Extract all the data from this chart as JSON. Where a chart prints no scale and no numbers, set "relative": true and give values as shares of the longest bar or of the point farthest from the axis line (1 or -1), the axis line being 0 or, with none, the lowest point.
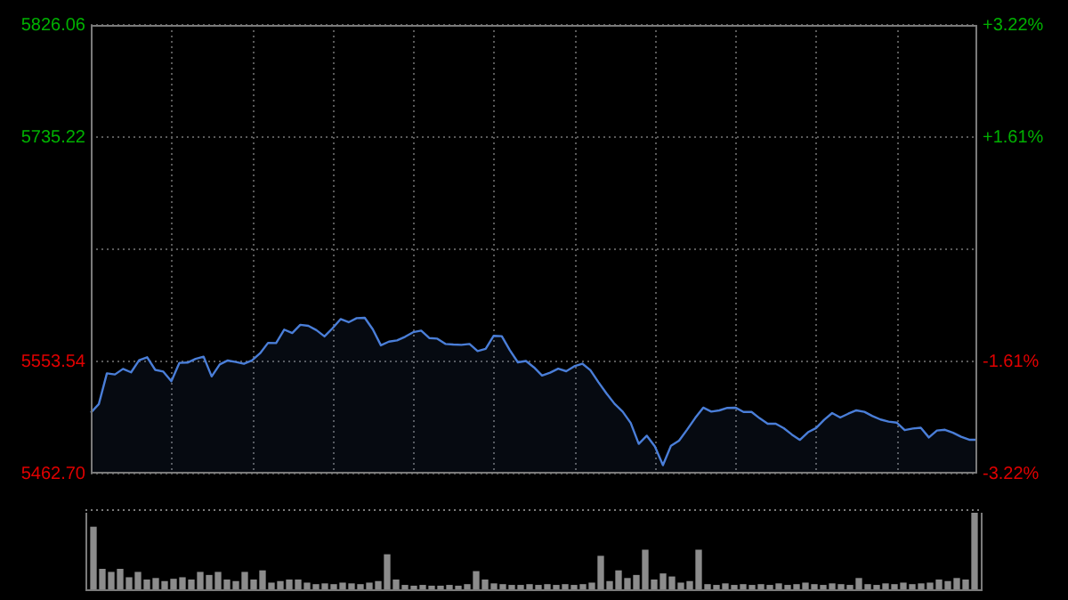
{
  "chart_data": [
    {
      "type": "area",
      "grid": true,
      "tick_labels": "y",
      "categories": [
        null,
        null,
        null,
        null,
        null,
        null,
        null,
        null,
        null,
        null,
        null,
        null,
        null,
        null,
        null,
        null,
        null,
        null,
        null,
        null,
        null,
        null,
        null,
        null,
        null,
        null,
        null,
        null,
        null,
        null,
        null,
        null,
        null,
        null,
        null,
        null,
        null,
        null,
        null,
        null,
        null,
        null,
        null,
        null,
        null,
        null,
        null,
        null,
        null,
        null,
        null,
        null,
        null,
        null,
        null,
        null,
        null,
        null,
        null,
        null,
        null,
        null,
        null,
        null,
        null,
        null,
        null,
        null,
        null,
        null,
        null,
        null,
        null,
        null,
        null,
        null,
        null,
        null,
        null,
        null,
        null,
        null,
        null,
        null,
        null,
        null,
        null,
        null,
        null,
        null,
        null,
        null,
        null,
        null,
        null,
        null,
        null,
        null,
        null,
        null,
        null,
        null,
        null,
        null,
        null,
        null,
        null,
        null,
        null,
        null,
        null
      ],
      "ylim": [
        5462.7,
        5826.06
      ],
      "yticks": [
        {
          "value": 5462.7,
          "label": "5462.70"
        },
        5553.54,
        {
          "value": 5644.38,
          "label": null
        },
        5735.22,
        5826.06
      ],
      "y2lim": [
        -3.22,
        3.22
      ],
      "y2ticks": [
        {
          "value": -3.22,
          "label": "-3.22%"
        },
        {
          "value": -1.61,
          "label": "-1.61%"
        },
        {
          "value": 0,
          "label": null
        },
        {
          "value": 1.61,
          "label": "+1.61%"
        },
        {
          "value": 3.22,
          "label": "+3.22%"
        }
      ],
      "series": [
        {
          "color": "#4a7ed8",
          "values": [
            5512,
            5519,
            5543.9,
            5543,
            5547.5,
            5544.7,
            5554.5,
            5556.9,
            5546.7,
            5545.3,
            5537.5,
            5552.4,
            5552.6,
            5555.6,
            5557.4,
            5541.4,
            5551.1,
            5554.3,
            5553.1,
            5551.6,
            5554.3,
            5560.1,
            5568.6,
            5568.4,
            5579.3,
            5576.5,
            5583.2,
            5582.4,
            5578.9,
            5573.8,
            5580.4,
            5587.8,
            5585.3,
            5588.6,
            5588.9,
            5579.5,
            5566.6,
            5569.6,
            5570.6,
            5573.5,
            5577.2,
            5578.5,
            5572.5,
            5572.0,
            5567.7,
            5567.2,
            5567.0,
            5567.7,
            5561.9,
            5563.7,
            5574.3,
            5574.0,
            5562.6,
            5552.8,
            5553.9,
            5548.7,
            5542.1,
            5544.4,
            5547.7,
            5545.6,
            5549.6,
            5551.7,
            5546.4,
            5536.7,
            5527.6,
            5519.2,
            5512.9,
            5503.7,
            5486.8,
            5493.4,
            5484.7,
            5469.5,
            5485.3,
            5489.4,
            5498.3,
            5507.7,
            5516.1,
            5512.9,
            5513.9,
            5515.9,
            5516.1,
            5512.6,
            5512.6,
            5507.5,
            5503.1,
            5503.1,
            5499.5,
            5494.3,
            5490.0,
            5496.2,
            5499.6,
            5506.2,
            5511.7,
            5508.1,
            5511.2,
            5513.9,
            5512.7,
            5509.3,
            5506.5,
            5504.8,
            5504.0,
            5497.9,
            5499.2,
            5499.8,
            5492.0,
            5497.6,
            5498.2,
            5495.8,
            5492.5,
            5490.1,
            5490.1
          ]
        }
      ]
    },
    {
      "type": "bar",
      "relative": true,
      "color": "#8c8c8c",
      "categories": [
        null,
        null,
        null,
        null,
        null,
        null,
        null,
        null,
        null,
        null,
        null,
        null,
        null,
        null,
        null,
        null,
        null,
        null,
        null,
        null,
        null,
        null,
        null,
        null,
        null,
        null,
        null,
        null,
        null,
        null,
        null,
        null,
        null,
        null,
        null,
        null,
        null,
        null,
        null,
        null,
        null,
        null,
        null,
        null,
        null,
        null,
        null,
        null,
        null,
        null,
        null,
        null,
        null,
        null,
        null,
        null,
        null,
        null,
        null,
        null,
        null,
        null,
        null,
        null,
        null,
        null,
        null,
        null,
        null,
        null,
        null,
        null,
        null,
        null,
        null,
        null,
        null,
        null,
        null,
        null,
        null,
        null,
        null,
        null,
        null,
        null,
        null,
        null,
        null,
        null,
        null,
        null,
        null,
        null,
        null,
        null,
        null,
        null,
        null,
        null
      ],
      "values": [
        0.81,
        0.26,
        0.22,
        0.26,
        0.15,
        0.22,
        0.12,
        0.14,
        0.1,
        0.13,
        0.15,
        0.12,
        0.22,
        0.18,
        0.22,
        0.12,
        0.1,
        0.22,
        0.12,
        0.24,
        0.08,
        0.1,
        0.12,
        0.12,
        0.08,
        0.06,
        0.07,
        0.06,
        0.08,
        0.07,
        0.06,
        0.08,
        0.1,
        0.45,
        0.12,
        0.05,
        0.04,
        0.05,
        0.04,
        0.04,
        0.05,
        0.04,
        0.06,
        0.23,
        0.12,
        0.07,
        0.06,
        0.05,
        0.05,
        0.06,
        0.05,
        0.06,
        0.05,
        0.06,
        0.05,
        0.06,
        0.08,
        0.43,
        0.1,
        0.24,
        0.14,
        0.18,
        0.51,
        0.12,
        0.2,
        0.16,
        0.08,
        0.1,
        0.51,
        0.06,
        0.05,
        0.07,
        0.05,
        0.06,
        0.05,
        0.06,
        0.05,
        0.07,
        0.05,
        0.06,
        0.08,
        0.06,
        0.05,
        0.07,
        0.06,
        0.05,
        0.14,
        0.06,
        0.05,
        0.07,
        0.06,
        0.08,
        0.06,
        0.07,
        0.08,
        0.12,
        0.1,
        0.14,
        0.12,
        1.0
      ]
    }
  ]
}
